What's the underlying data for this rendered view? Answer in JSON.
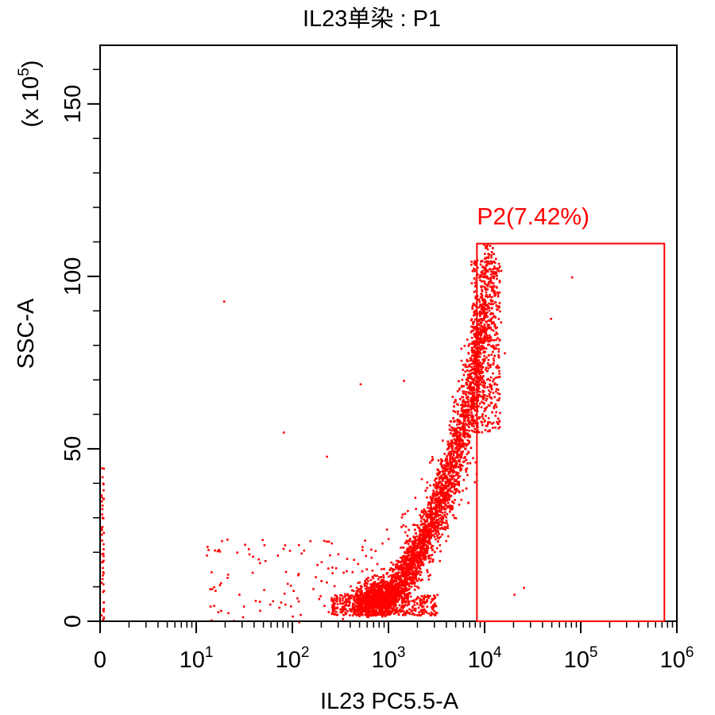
{
  "chart_data": {
    "type": "scatter",
    "title": "IL23单染 : P1",
    "xlabel": "IL23 PC5.5-A",
    "ylabel": "SSC-A",
    "y_multiplier": "(x 10",
    "y_multiplier_exp": "5",
    "x_scale": "log",
    "x_ticks": [
      {
        "value": 0,
        "base": "0",
        "exp": ""
      },
      {
        "value": 1,
        "base": "10",
        "exp": "1"
      },
      {
        "value": 2,
        "base": "10",
        "exp": "2"
      },
      {
        "value": 3,
        "base": "10",
        "exp": "3"
      },
      {
        "value": 4,
        "base": "10",
        "exp": "4"
      },
      {
        "value": 5,
        "base": "10",
        "exp": "5"
      },
      {
        "value": 6,
        "base": "10",
        "exp": "6"
      }
    ],
    "y_ticks": [
      0,
      50,
      100,
      150
    ],
    "xlim_log10": [
      0,
      6
    ],
    "ylim": [
      0,
      167
    ],
    "point_color": "#ff0000",
    "gate": {
      "name": "P2",
      "label": "P2(7.42%)",
      "percent": 7.42,
      "x_range_log10": [
        3.92,
        5.87
      ],
      "y_range": [
        0,
        109.5
      ],
      "color": "#ff0000"
    },
    "population": {
      "description_points": [
        {
          "x_log10": 2.6,
          "y": 5
        },
        {
          "x_log10": 3.0,
          "y": 8
        },
        {
          "x_log10": 3.3,
          "y": 20
        },
        {
          "x_log10": 3.6,
          "y": 40
        },
        {
          "x_log10": 3.8,
          "y": 60
        },
        {
          "x_log10": 3.95,
          "y": 80
        },
        {
          "x_log10": 4.0,
          "y": 95
        }
      ]
    }
  }
}
